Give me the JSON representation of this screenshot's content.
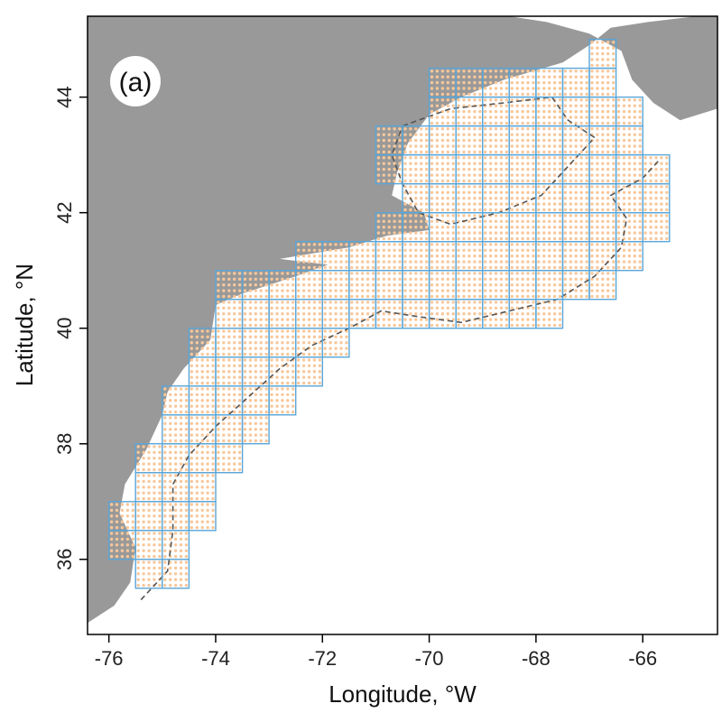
{
  "figure": {
    "panel_label": "(a)",
    "xlabel": "Longitude, °W",
    "ylabel": "Latitude, °N",
    "xlim": [
      -76.4,
      -64.6
    ],
    "ylim": [
      34.7,
      45.4
    ]
  },
  "axes": {
    "x_ticks": [
      {
        "value": -76,
        "label": "-76"
      },
      {
        "value": -74,
        "label": "-74"
      },
      {
        "value": -72,
        "label": "-72"
      },
      {
        "value": -70,
        "label": "-70"
      },
      {
        "value": -68,
        "label": "-68"
      },
      {
        "value": -66,
        "label": "-66"
      }
    ],
    "y_ticks": [
      {
        "value": 36,
        "label": "36"
      },
      {
        "value": 38,
        "label": "38"
      },
      {
        "value": 40,
        "label": "40"
      },
      {
        "value": 42,
        "label": "42"
      },
      {
        "value": 44,
        "label": "44"
      }
    ]
  },
  "colors": {
    "land": "#999999",
    "ocean": "#ffffff",
    "grid_cells": "#5aa6d8",
    "sample_points": "#f7c89c",
    "isobath": "#555555",
    "frame": "#000000"
  },
  "layers": {
    "grid_cells_degrees": 0.5,
    "grid_rows": [
      {
        "lat": 44.5,
        "lon_min": -67.0,
        "lon_max": -66.5
      },
      {
        "lat": 44.0,
        "lon_min": -70.0,
        "lon_max": -66.5
      },
      {
        "lat": 43.5,
        "lon_min": -70.0,
        "lon_max": -66.0
      },
      {
        "lat": 43.0,
        "lon_min": -71.0,
        "lon_max": -66.0
      },
      {
        "lat": 42.5,
        "lon_min": -71.0,
        "lon_max": -65.5
      },
      {
        "lat": 42.0,
        "lon_min": -70.5,
        "lon_max": -65.5
      },
      {
        "lat": 41.5,
        "lon_min": -71.0,
        "lon_max": -65.5
      },
      {
        "lat": 41.0,
        "lon_min": -72.5,
        "lon_max": -66.0
      },
      {
        "lat": 40.5,
        "lon_min": -74.0,
        "lon_max": -66.5
      },
      {
        "lat": 40.0,
        "lon_min": -74.0,
        "lon_max": -67.5
      },
      {
        "lat": 39.5,
        "lon_min": -74.5,
        "lon_max": -71.5
      },
      {
        "lat": 39.0,
        "lon_min": -74.5,
        "lon_max": -72.0
      },
      {
        "lat": 38.5,
        "lon_min": -75.0,
        "lon_max": -72.5
      },
      {
        "lat": 38.0,
        "lon_min": -75.0,
        "lon_max": -73.0
      },
      {
        "lat": 37.5,
        "lon_min": -75.5,
        "lon_max": -73.5
      },
      {
        "lat": 37.0,
        "lon_min": -75.5,
        "lon_max": -74.0
      },
      {
        "lat": 36.5,
        "lon_min": -76.0,
        "lon_max": -74.0
      },
      {
        "lat": 36.0,
        "lon_min": -76.0,
        "lon_max": -74.5
      },
      {
        "lat": 35.5,
        "lon_min": -75.5,
        "lon_max": -74.5
      }
    ],
    "coastline": [
      [
        -76.4,
        34.9
      ],
      [
        -75.9,
        35.2
      ],
      [
        -75.6,
        35.6
      ],
      [
        -75.5,
        36.2
      ],
      [
        -75.8,
        36.8
      ],
      [
        -75.7,
        37.3
      ],
      [
        -75.3,
        37.9
      ],
      [
        -75.0,
        38.5
      ],
      [
        -74.9,
        38.9
      ],
      [
        -74.6,
        39.3
      ],
      [
        -74.1,
        39.8
      ],
      [
        -74.0,
        40.4
      ],
      [
        -73.5,
        40.6
      ],
      [
        -72.5,
        40.9
      ],
      [
        -71.9,
        41.1
      ],
      [
        -72.8,
        41.2
      ],
      [
        -71.5,
        41.4
      ],
      [
        -70.8,
        41.6
      ],
      [
        -70.0,
        41.7
      ],
      [
        -70.1,
        42.0
      ],
      [
        -70.7,
        42.3
      ],
      [
        -70.6,
        42.7
      ],
      [
        -70.4,
        43.2
      ],
      [
        -70.0,
        43.7
      ],
      [
        -69.4,
        44.0
      ],
      [
        -68.6,
        44.3
      ],
      [
        -67.5,
        44.6
      ],
      [
        -67.0,
        44.9
      ],
      [
        -66.6,
        45.2
      ],
      [
        -65.9,
        45.3
      ],
      [
        -65.0,
        45.4
      ],
      [
        -64.6,
        45.4
      ],
      [
        -64.6,
        43.8
      ],
      [
        -65.3,
        43.6
      ],
      [
        -65.8,
        43.9
      ],
      [
        -66.2,
        44.3
      ],
      [
        -66.4,
        44.8
      ],
      [
        -67.0,
        45.1
      ],
      [
        -67.8,
        45.3
      ],
      [
        -68.5,
        45.4
      ]
    ],
    "isobath_200m": [
      [
        -75.4,
        35.3
      ],
      [
        -74.9,
        35.8
      ],
      [
        -74.8,
        36.5
      ],
      [
        -74.8,
        37.3
      ],
      [
        -74.5,
        37.8
      ],
      [
        -74.0,
        38.3
      ],
      [
        -73.4,
        38.8
      ],
      [
        -72.8,
        39.3
      ],
      [
        -72.2,
        39.7
      ],
      [
        -71.5,
        40.0
      ],
      [
        -70.9,
        40.3
      ],
      [
        -70.2,
        40.2
      ],
      [
        -69.4,
        40.1
      ],
      [
        -68.5,
        40.3
      ],
      [
        -67.6,
        40.5
      ],
      [
        -66.9,
        40.9
      ],
      [
        -66.4,
        41.4
      ],
      [
        -66.3,
        41.9
      ],
      [
        -66.6,
        42.3
      ],
      [
        -66.0,
        42.6
      ],
      [
        -65.7,
        42.9
      ]
    ],
    "isobath_basin": [
      [
        -70.5,
        43.5
      ],
      [
        -69.6,
        43.8
      ],
      [
        -68.6,
        43.9
      ],
      [
        -67.7,
        44.0
      ],
      [
        -67.4,
        43.6
      ],
      [
        -66.9,
        43.3
      ],
      [
        -67.4,
        42.8
      ],
      [
        -67.9,
        42.3
      ],
      [
        -68.7,
        42.0
      ],
      [
        -69.6,
        41.8
      ],
      [
        -70.2,
        42.0
      ],
      [
        -70.5,
        42.5
      ],
      [
        -70.7,
        43.0
      ],
      [
        -70.5,
        43.5
      ]
    ]
  }
}
